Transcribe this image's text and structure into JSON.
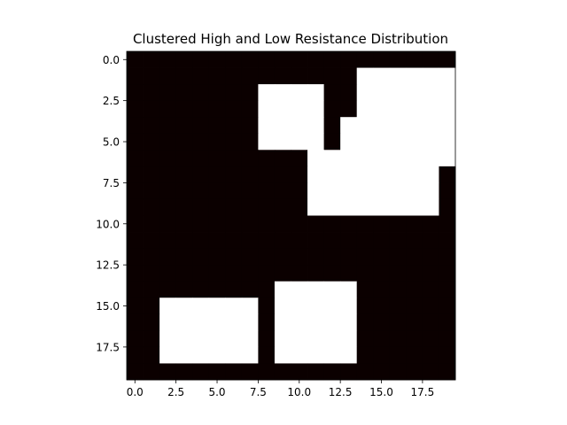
{
  "chart_data": {
    "type": "heatmap",
    "title": "Clustered High and Low Resistance Distribution",
    "xlabel": "",
    "ylabel": "",
    "rows": 20,
    "cols": 20,
    "xlim": [
      -0.5,
      19.5
    ],
    "ylim": [
      19.5,
      -0.5
    ],
    "y_axis_inverted": true,
    "grid": false,
    "legend": "none",
    "colors": {
      "low": "#0b0000",
      "high": "#ffffff"
    },
    "x_ticks": [
      0.0,
      2.5,
      5.0,
      7.5,
      10.0,
      12.5,
      15.0,
      17.5
    ],
    "x_tick_labels": [
      "0.0",
      "2.5",
      "5.0",
      "7.5",
      "10.0",
      "12.5",
      "15.0",
      "17.5"
    ],
    "y_ticks": [
      0.0,
      2.5,
      5.0,
      7.5,
      10.0,
      12.5,
      15.0,
      17.5
    ],
    "y_tick_labels": [
      "0.0",
      "2.5",
      "5.0",
      "7.5",
      "10.0",
      "12.5",
      "15.0",
      "17.5"
    ],
    "values": [
      [
        0,
        0,
        0,
        0,
        0,
        0,
        0,
        0,
        0,
        0,
        0,
        0,
        0,
        0,
        0,
        0,
        0,
        0,
        0,
        0
      ],
      [
        0,
        0,
        0,
        0,
        0,
        0,
        0,
        0,
        0,
        0,
        0,
        0,
        0,
        0,
        1,
        1,
        1,
        1,
        1,
        1
      ],
      [
        0,
        0,
        0,
        0,
        0,
        0,
        0,
        0,
        1,
        1,
        1,
        1,
        0,
        0,
        1,
        1,
        1,
        1,
        1,
        1
      ],
      [
        0,
        0,
        0,
        0,
        0,
        0,
        0,
        0,
        1,
        1,
        1,
        1,
        0,
        0,
        1,
        1,
        1,
        1,
        1,
        1
      ],
      [
        0,
        0,
        0,
        0,
        0,
        0,
        0,
        0,
        1,
        1,
        1,
        1,
        0,
        1,
        1,
        1,
        1,
        1,
        1,
        1
      ],
      [
        0,
        0,
        0,
        0,
        0,
        0,
        0,
        0,
        1,
        1,
        1,
        1,
        0,
        1,
        1,
        1,
        1,
        1,
        1,
        1
      ],
      [
        0,
        0,
        0,
        0,
        0,
        0,
        0,
        0,
        0,
        0,
        0,
        1,
        1,
        1,
        1,
        1,
        1,
        1,
        1,
        1
      ],
      [
        0,
        0,
        0,
        0,
        0,
        0,
        0,
        0,
        0,
        0,
        0,
        1,
        1,
        1,
        1,
        1,
        1,
        1,
        1,
        0
      ],
      [
        0,
        0,
        0,
        0,
        0,
        0,
        0,
        0,
        0,
        0,
        0,
        1,
        1,
        1,
        1,
        1,
        1,
        1,
        1,
        0
      ],
      [
        0,
        0,
        0,
        0,
        0,
        0,
        0,
        0,
        0,
        0,
        0,
        1,
        1,
        1,
        1,
        1,
        1,
        1,
        1,
        0
      ],
      [
        0,
        0,
        0,
        0,
        0,
        0,
        0,
        0,
        0,
        0,
        0,
        0,
        0,
        0,
        0,
        0,
        0,
        0,
        0,
        0
      ],
      [
        0,
        0,
        0,
        0,
        0,
        0,
        0,
        0,
        0,
        0,
        0,
        0,
        0,
        0,
        0,
        0,
        0,
        0,
        0,
        0
      ],
      [
        0,
        0,
        0,
        0,
        0,
        0,
        0,
        0,
        0,
        0,
        0,
        0,
        0,
        0,
        0,
        0,
        0,
        0,
        0,
        0
      ],
      [
        0,
        0,
        0,
        0,
        0,
        0,
        0,
        0,
        0,
        0,
        0,
        0,
        0,
        0,
        0,
        0,
        0,
        0,
        0,
        0
      ],
      [
        0,
        0,
        0,
        0,
        0,
        0,
        0,
        0,
        0,
        1,
        1,
        1,
        1,
        1,
        0,
        0,
        0,
        0,
        0,
        0
      ],
      [
        0,
        0,
        1,
        1,
        1,
        1,
        1,
        1,
        0,
        1,
        1,
        1,
        1,
        1,
        0,
        0,
        0,
        0,
        0,
        0
      ],
      [
        0,
        0,
        1,
        1,
        1,
        1,
        1,
        1,
        0,
        1,
        1,
        1,
        1,
        1,
        0,
        0,
        0,
        0,
        0,
        0
      ],
      [
        0,
        0,
        1,
        1,
        1,
        1,
        1,
        1,
        0,
        1,
        1,
        1,
        1,
        1,
        0,
        0,
        0,
        0,
        0,
        0
      ],
      [
        0,
        0,
        1,
        1,
        1,
        1,
        1,
        1,
        0,
        1,
        1,
        1,
        1,
        1,
        0,
        0,
        0,
        0,
        0,
        0
      ],
      [
        0,
        0,
        0,
        0,
        0,
        0,
        0,
        0,
        0,
        0,
        0,
        0,
        0,
        0,
        0,
        0,
        0,
        0,
        0,
        0
      ]
    ]
  }
}
